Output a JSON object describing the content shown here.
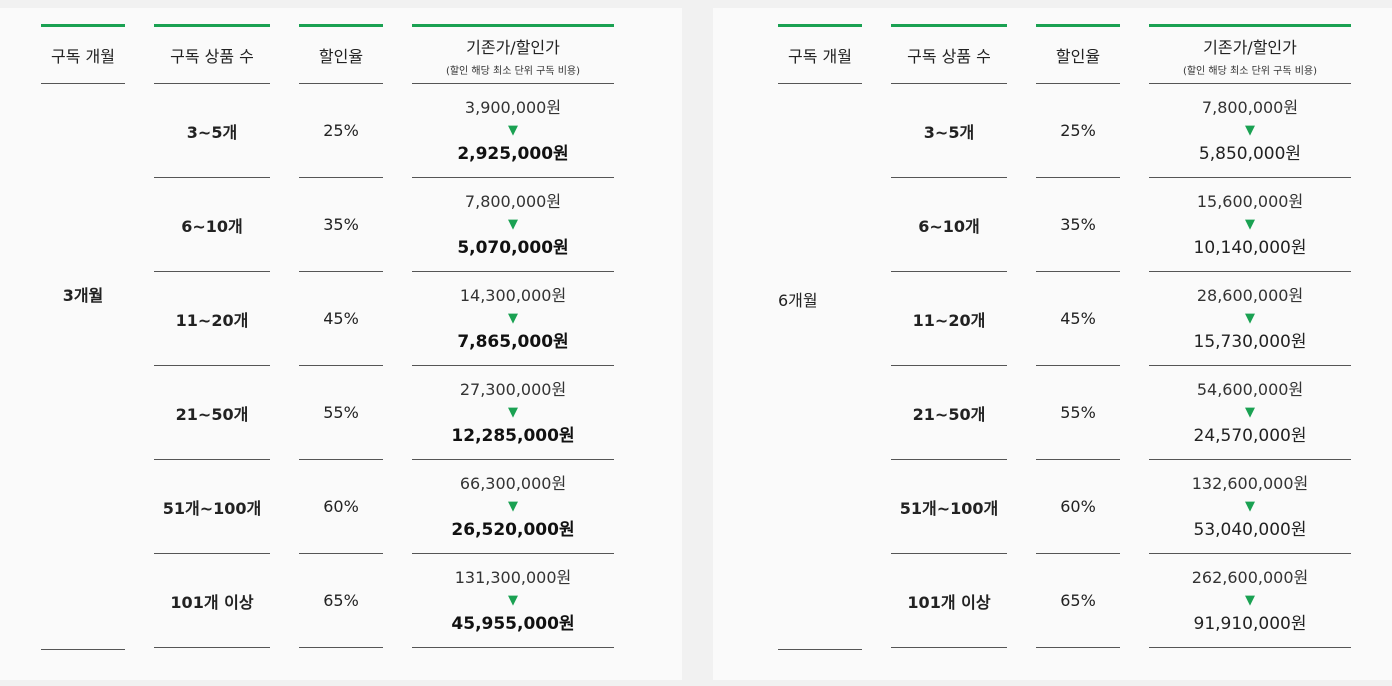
{
  "headers": {
    "period": "구독 개월",
    "count": "구독 상품 수",
    "rate": "할인율",
    "price": "기존가/할인가",
    "price_sub": "(할인 해당 최소 단위 구독 비용)"
  },
  "tiers": [
    "3~5개",
    "6~10개",
    "11~20개",
    "21~50개",
    "51개~100개",
    "101개 이상"
  ],
  "rates": [
    "25%",
    "35%",
    "45%",
    "55%",
    "60%",
    "65%"
  ],
  "arrow_glyph": "▼",
  "accent_color": "#1aa152",
  "tables": [
    {
      "period": "3개월",
      "prices": [
        {
          "orig": "3,900,000원",
          "disc": "2,925,000원"
        },
        {
          "orig": "7,800,000원",
          "disc": "5,070,000원"
        },
        {
          "orig": "14,300,000원",
          "disc": "7,865,000원"
        },
        {
          "orig": "27,300,000원",
          "disc": "12,285,000원"
        },
        {
          "orig": "66,300,000원",
          "disc": "26,520,000원"
        },
        {
          "orig": "131,300,000원",
          "disc": "45,955,000원"
        }
      ]
    },
    {
      "period": "6개월",
      "prices": [
        {
          "orig": "7,800,000원",
          "disc": "5,850,000원"
        },
        {
          "orig": "15,600,000원",
          "disc": "10,140,000원"
        },
        {
          "orig": "28,600,000원",
          "disc": "15,730,000원"
        },
        {
          "orig": "54,600,000원",
          "disc": "24,570,000원"
        },
        {
          "orig": "132,600,000원",
          "disc": "53,040,000원"
        },
        {
          "orig": "262,600,000원",
          "disc": "91,910,000원"
        }
      ]
    }
  ]
}
